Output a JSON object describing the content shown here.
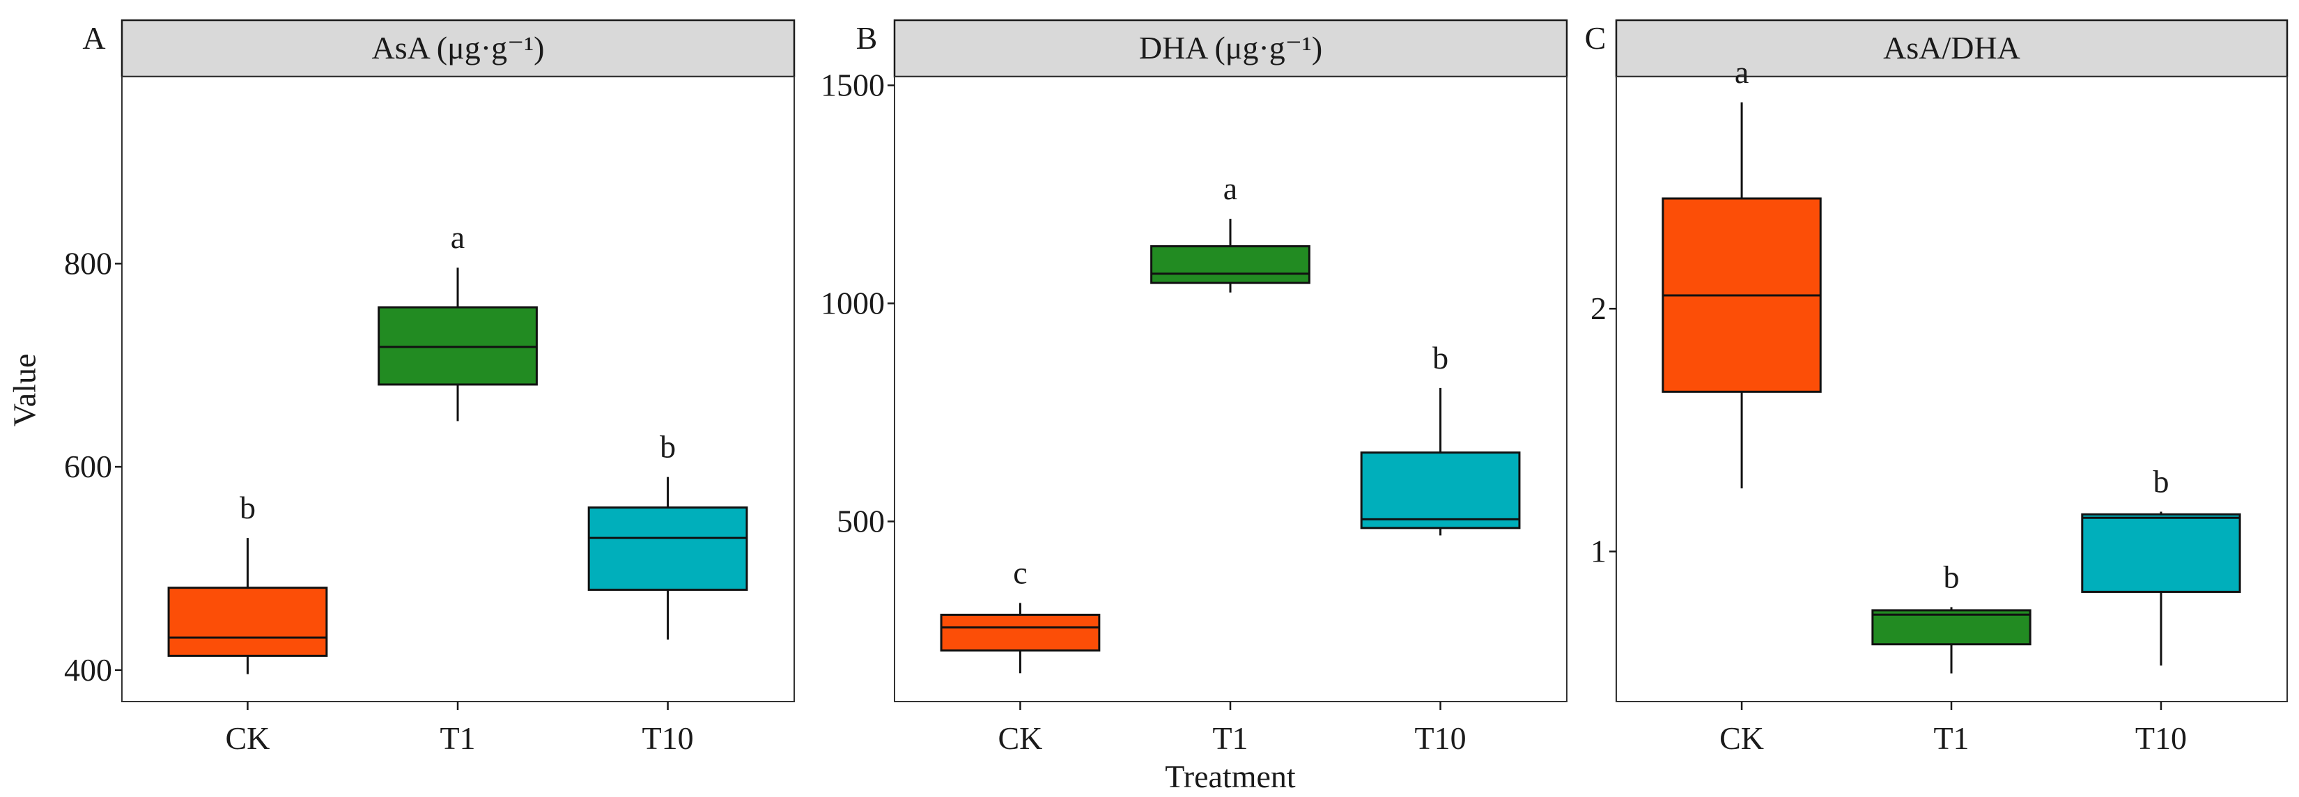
{
  "chart_data": {
    "type": "boxplot",
    "xlabel": "Treatment",
    "ylabel": "Value",
    "categories": [
      "CK",
      "T1",
      "T10"
    ],
    "colors": {
      "CK": "#FC4E07",
      "T1": "#228B22",
      "T10": "#00AFBB"
    },
    "strip_background": "#D9D9D9",
    "panels": [
      {
        "letter": "A",
        "title": "AsA (μg·g⁻¹)",
        "ylim": [
          369,
          984
        ],
        "yticks": [
          400,
          600,
          800
        ],
        "boxes": [
          {
            "category": "CK",
            "min": 396,
            "q1": 414,
            "median": 432,
            "q3": 481,
            "max": 530,
            "sig": "b"
          },
          {
            "category": "T1",
            "min": 645,
            "q1": 681,
            "median": 718,
            "q3": 757,
            "max": 796,
            "sig": "a"
          },
          {
            "category": "T10",
            "min": 430,
            "q1": 479,
            "median": 530,
            "q3": 560,
            "max": 590,
            "sig": "b"
          }
        ]
      },
      {
        "letter": "B",
        "title": "DHA (μg·g⁻¹)",
        "ylim": [
          87,
          1520
        ],
        "yticks": [
          500,
          1000,
          1500
        ],
        "boxes": [
          {
            "category": "CK",
            "min": 152,
            "q1": 204,
            "median": 257,
            "q3": 286,
            "max": 313,
            "sig": "c"
          },
          {
            "category": "T1",
            "min": 1025,
            "q1": 1047,
            "median": 1068,
            "q3": 1131,
            "max": 1194,
            "sig": "a"
          },
          {
            "category": "T10",
            "min": 468,
            "q1": 485,
            "median": 505,
            "q3": 658,
            "max": 806,
            "sig": "b"
          }
        ]
      },
      {
        "letter": "C",
        "title": "AsA/DHA",
        "ylim": [
          0.382,
          2.956
        ],
        "yticks": [
          1,
          2
        ],
        "boxes": [
          {
            "category": "CK",
            "min": 1.26,
            "q1": 1.658,
            "median": 2.055,
            "q3": 2.454,
            "max": 2.85,
            "sig": "a"
          },
          {
            "category": "T1",
            "min": 0.498,
            "q1": 0.618,
            "median": 0.74,
            "q3": 0.758,
            "max": 0.771,
            "sig": "b"
          },
          {
            "category": "T10",
            "min": 0.53,
            "q1": 0.834,
            "median": 1.139,
            "q3": 1.153,
            "max": 1.164,
            "sig": "b"
          }
        ]
      }
    ]
  }
}
